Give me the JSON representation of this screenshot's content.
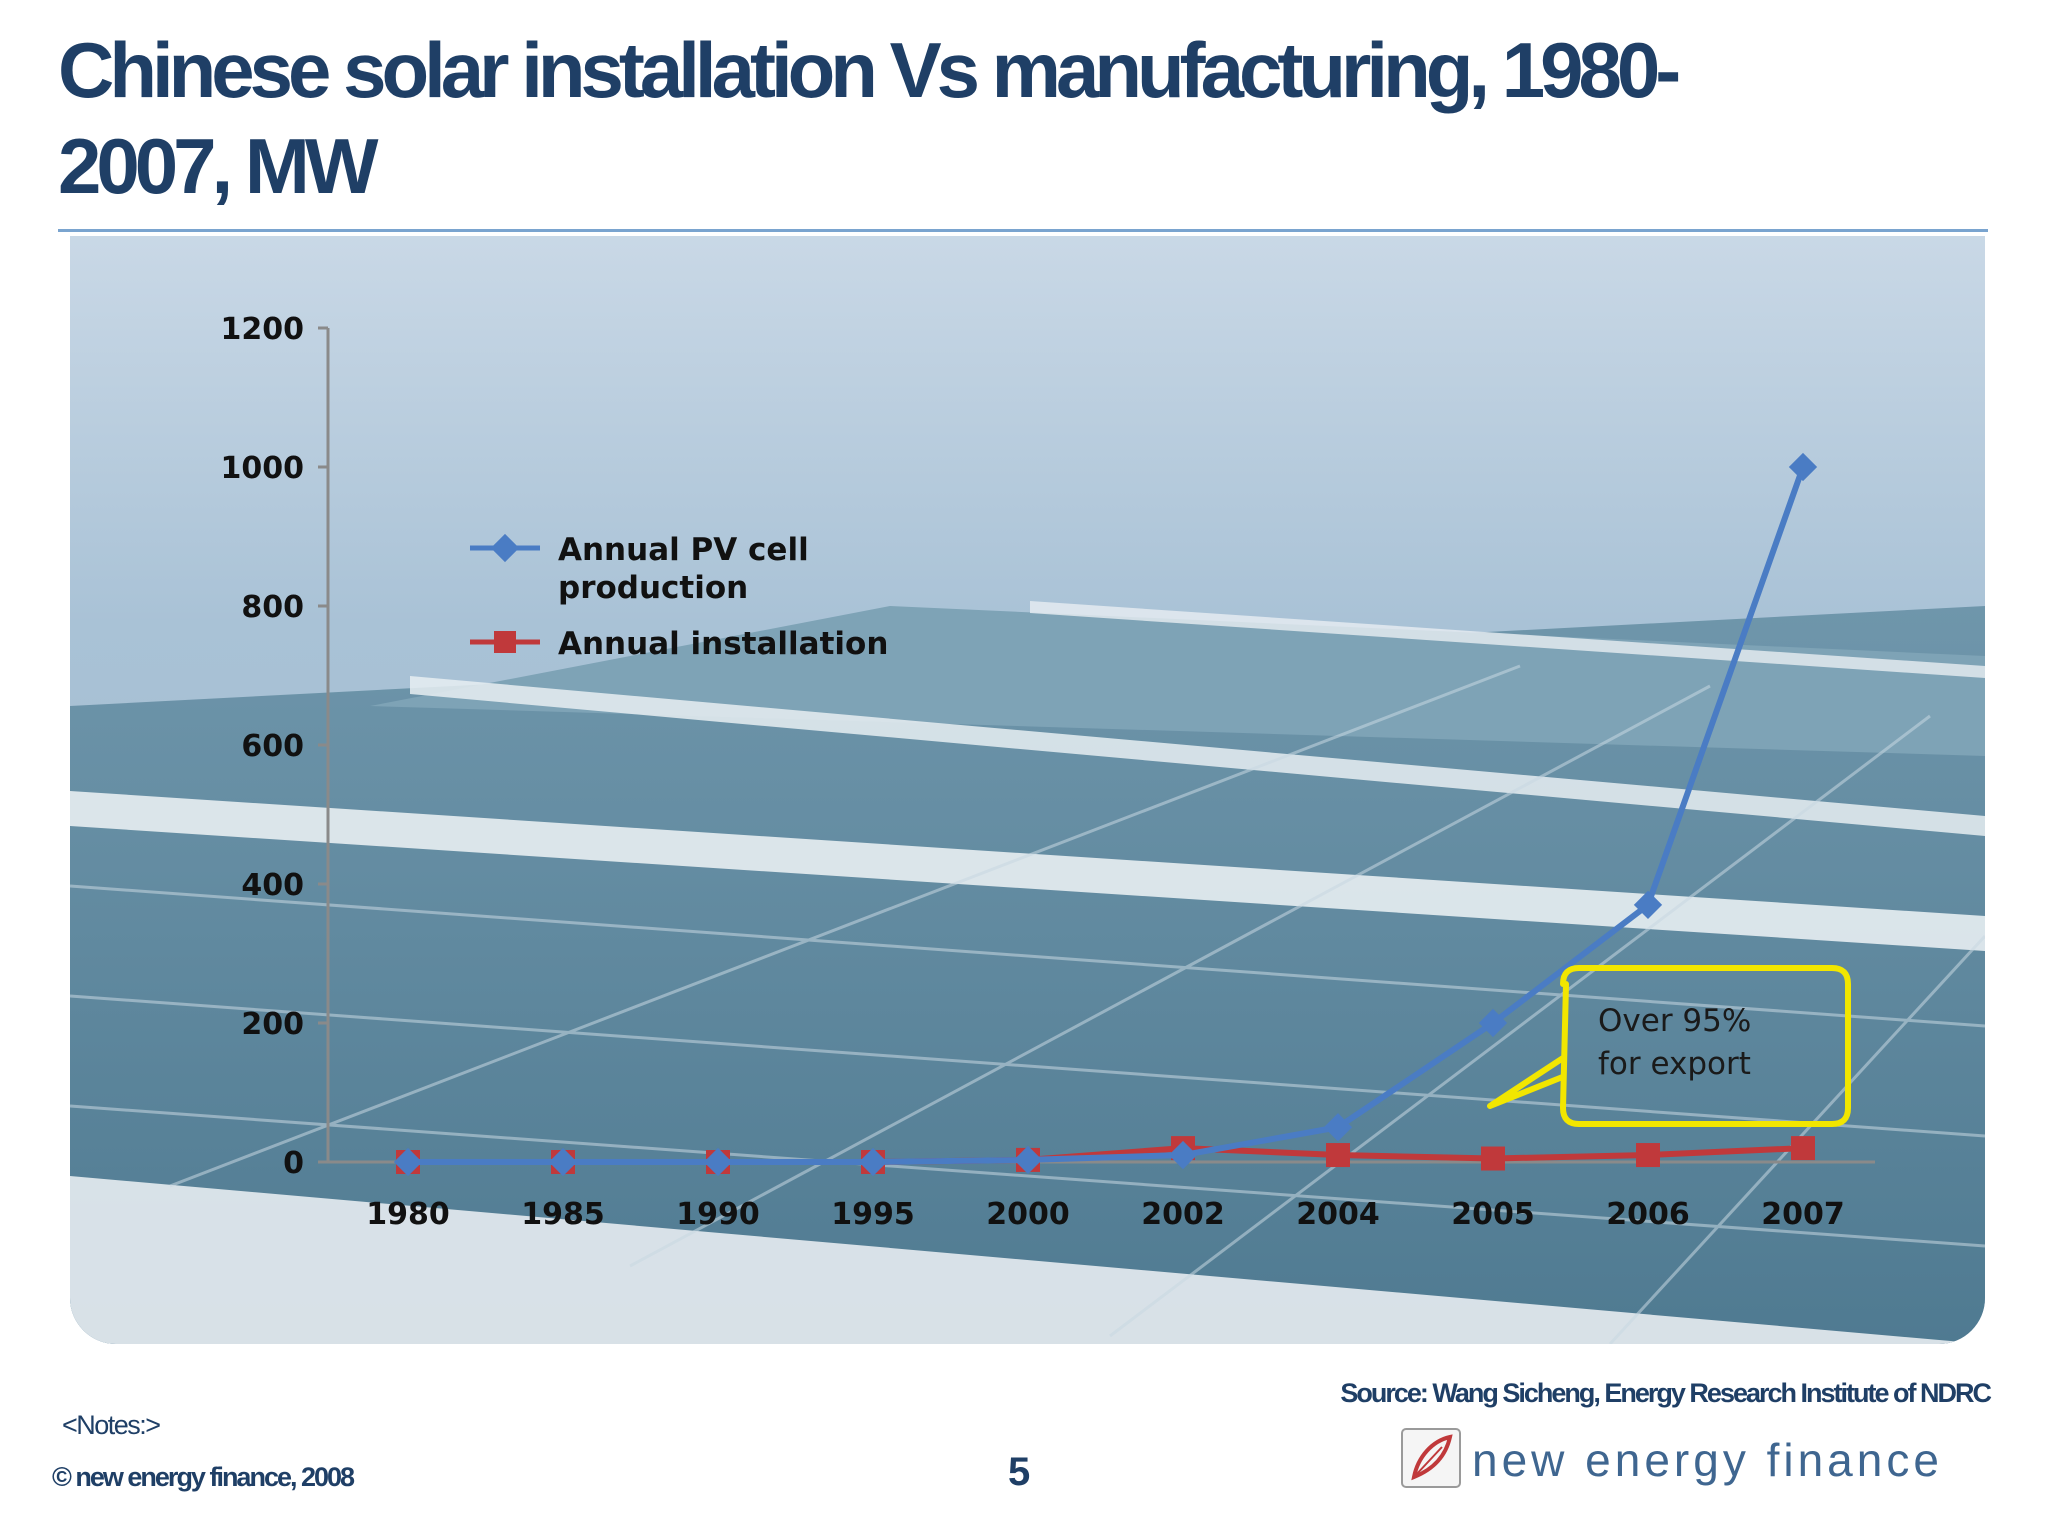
{
  "slide": {
    "title": "Chinese solar installation Vs manufacturing, 1980-2007, MW",
    "source": "Source: Wang Sicheng, Energy Research Institute of NDRC",
    "notes": "<Notes:>",
    "copyright": "© new energy finance, 2008",
    "page_number": "5",
    "brand_name": "new energy finance",
    "colors": {
      "title": "#1f3f66",
      "series_production": "#4a7cc4",
      "series_installation": "#c0393b",
      "callout_border": "#f2e600"
    }
  },
  "chart_data": {
    "type": "line",
    "title": "",
    "xlabel": "",
    "ylabel": "",
    "categories": [
      "1980",
      "1985",
      "1990",
      "1995",
      "2000",
      "2002",
      "2004",
      "2005",
      "2006",
      "2007"
    ],
    "ylim": [
      0,
      1200
    ],
    "yticks": [
      "0",
      "200",
      "400",
      "600",
      "800",
      "1000",
      "1200"
    ],
    "grid": false,
    "legend_position": "top-left",
    "series": [
      {
        "name": "Annual PV cell production",
        "marker": "diamond",
        "values": [
          0,
          0,
          0,
          0,
          3,
          10,
          50,
          200,
          370,
          1000
        ]
      },
      {
        "name": "Annual installation",
        "marker": "square",
        "values": [
          0,
          0,
          0,
          0,
          3,
          20,
          10,
          5,
          10,
          20
        ]
      }
    ],
    "annotation": {
      "text_line1": "Over 95%",
      "text_line2": "for export"
    }
  }
}
